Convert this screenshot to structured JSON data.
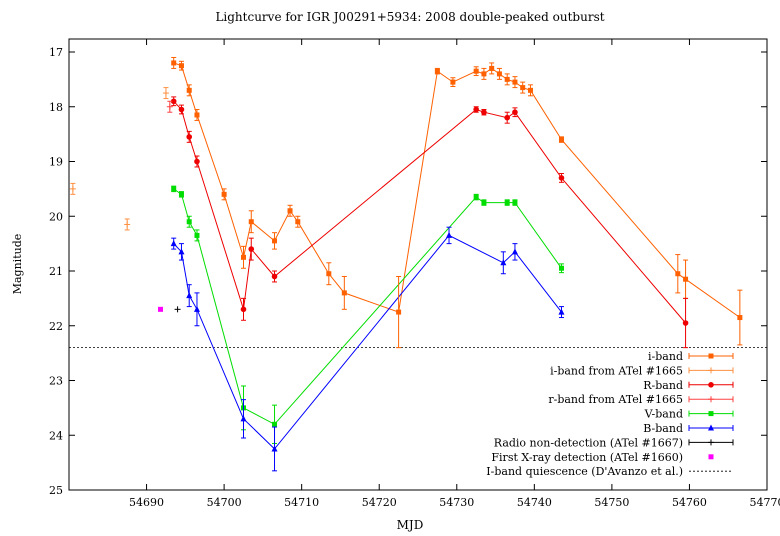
{
  "chart_data": {
    "type": "scatter",
    "title": "Lightcurve for IGR J00291+5934: 2008 double-peaked outburst",
    "xlabel": "MJD",
    "ylabel": "Magnitude",
    "xlim": [
      54680,
      54770
    ],
    "ylim": [
      17,
      25
    ],
    "y_inverted": true,
    "grid": false,
    "legend_position": "bottom-right",
    "x_ticks": [
      54690,
      54700,
      54710,
      54720,
      54730,
      54740,
      54750,
      54760,
      54770
    ],
    "y_ticks": [
      17,
      18,
      19,
      20,
      21,
      22,
      23,
      24,
      25
    ],
    "quiescence_level": 22.4,
    "series": [
      {
        "name": "i-band",
        "color": "#ff6000",
        "marker": "square",
        "connected": true,
        "points": [
          {
            "x": 54693.5,
            "y": 17.2,
            "err": 0.1
          },
          {
            "x": 54694.5,
            "y": 17.25,
            "err": 0.08
          },
          {
            "x": 54695.5,
            "y": 17.7,
            "err": 0.1
          },
          {
            "x": 54696.5,
            "y": 18.15,
            "err": 0.1
          },
          {
            "x": 54700,
            "y": 19.6,
            "err": 0.1
          },
          {
            "x": 54702.5,
            "y": 20.75,
            "err": 0.2
          },
          {
            "x": 54703.5,
            "y": 20.1,
            "err": 0.2
          },
          {
            "x": 54706.5,
            "y": 20.45,
            "err": 0.15
          },
          {
            "x": 54708.5,
            "y": 19.9,
            "err": 0.1
          },
          {
            "x": 54709.5,
            "y": 20.1,
            "err": 0.1
          },
          {
            "x": 54713.5,
            "y": 21.05,
            "err": 0.2
          },
          {
            "x": 54715.5,
            "y": 21.4,
            "err": 0.3
          },
          {
            "x": 54722.5,
            "y": 21.75,
            "err": 0.65
          },
          {
            "x": 54727.5,
            "y": 17.35,
            "err": 0.05
          },
          {
            "x": 54729.5,
            "y": 17.55,
            "err": 0.08
          },
          {
            "x": 54732.5,
            "y": 17.35,
            "err": 0.08
          },
          {
            "x": 54733.5,
            "y": 17.4,
            "err": 0.1
          },
          {
            "x": 54734.5,
            "y": 17.3,
            "err": 0.1
          },
          {
            "x": 54735.5,
            "y": 17.4,
            "err": 0.1
          },
          {
            "x": 54736.5,
            "y": 17.5,
            "err": 0.1
          },
          {
            "x": 54737.5,
            "y": 17.55,
            "err": 0.1
          },
          {
            "x": 54738.5,
            "y": 17.65,
            "err": 0.1
          },
          {
            "x": 54739.5,
            "y": 17.7,
            "err": 0.1
          },
          {
            "x": 54743.5,
            "y": 18.6,
            "err": 0.05
          },
          {
            "x": 54758.5,
            "y": 21.05,
            "err": 0.35
          },
          {
            "x": 54759.5,
            "y": 21.15,
            "err": 0.35
          },
          {
            "x": 54766.5,
            "y": 21.85,
            "err": 0.5
          }
        ]
      },
      {
        "name": "i-band from ATel #1665",
        "color": "#ff9040",
        "marker": "plus",
        "connected": false,
        "points": [
          {
            "x": 54680.5,
            "y": 19.5,
            "err": 0.1
          },
          {
            "x": 54687.5,
            "y": 20.15,
            "err": 0.1
          },
          {
            "x": 54692.5,
            "y": 17.75,
            "err": 0.1
          }
        ]
      },
      {
        "name": "R-band",
        "color": "#ee0000",
        "marker": "circle",
        "connected": true,
        "points": [
          {
            "x": 54693.5,
            "y": 17.9,
            "err": 0.08
          },
          {
            "x": 54694.5,
            "y": 18.05,
            "err": 0.08
          },
          {
            "x": 54695.5,
            "y": 18.55,
            "err": 0.1
          },
          {
            "x": 54696.5,
            "y": 19.0,
            "err": 0.1
          },
          {
            "x": 54702.5,
            "y": 21.7,
            "err": 0.2
          },
          {
            "x": 54703.5,
            "y": 20.6,
            "err": 0.2
          },
          {
            "x": 54706.5,
            "y": 21.1,
            "err": 0.1
          },
          {
            "x": 54732.5,
            "y": 18.05,
            "err": 0.05
          },
          {
            "x": 54733.5,
            "y": 18.1,
            "err": 0.05
          },
          {
            "x": 54736.5,
            "y": 18.2,
            "err": 0.1
          },
          {
            "x": 54737.5,
            "y": 18.1,
            "err": 0.08
          },
          {
            "x": 54743.5,
            "y": 19.3,
            "err": 0.08
          },
          {
            "x": 54759.5,
            "y": 21.95,
            "err": 0.45
          }
        ]
      },
      {
        "name": "r-band from ATel #1665",
        "color": "#ff4040",
        "marker": "plus",
        "connected": false,
        "points": [
          {
            "x": 54693,
            "y": 18.0,
            "err": 0.1
          }
        ]
      },
      {
        "name": "V-band",
        "color": "#00dd00",
        "marker": "square",
        "connected": true,
        "points": [
          {
            "x": 54693.5,
            "y": 19.5,
            "err": 0.05
          },
          {
            "x": 54694.5,
            "y": 19.6,
            "err": 0.05
          },
          {
            "x": 54695.5,
            "y": 20.1,
            "err": 0.1
          },
          {
            "x": 54696.5,
            "y": 20.35,
            "err": 0.1
          },
          {
            "x": 54702.5,
            "y": 23.5,
            "err": 0.4
          },
          {
            "x": 54706.5,
            "y": 23.8,
            "err": 0.35
          },
          {
            "x": 54732.5,
            "y": 19.65,
            "err": 0.05
          },
          {
            "x": 54733.5,
            "y": 19.75,
            "err": 0.05
          },
          {
            "x": 54736.5,
            "y": 19.75,
            "err": 0.05
          },
          {
            "x": 54737.5,
            "y": 19.75,
            "err": 0.05
          },
          {
            "x": 54743.5,
            "y": 20.95,
            "err": 0.08
          }
        ]
      },
      {
        "name": "B-band",
        "color": "#0000ff",
        "marker": "triangle",
        "connected": true,
        "points": [
          {
            "x": 54693.5,
            "y": 20.5,
            "err": 0.1
          },
          {
            "x": 54694.5,
            "y": 20.65,
            "err": 0.15
          },
          {
            "x": 54695.5,
            "y": 21.45,
            "err": 0.2
          },
          {
            "x": 54696.5,
            "y": 21.7,
            "err": 0.3
          },
          {
            "x": 54702.5,
            "y": 23.7,
            "err": 0.35
          },
          {
            "x": 54706.5,
            "y": 24.25,
            "err": 0.4
          },
          {
            "x": 54729,
            "y": 20.35,
            "err": 0.15
          },
          {
            "x": 54736,
            "y": 20.85,
            "err": 0.2
          },
          {
            "x": 54737.5,
            "y": 20.65,
            "err": 0.15
          },
          {
            "x": 54743.5,
            "y": 21.75,
            "err": 0.1
          }
        ]
      },
      {
        "name": "Radio non-detection (ATel #1667)",
        "color": "#000000",
        "marker": "plus",
        "connected": false,
        "points": [
          {
            "x": 54694,
            "y": 21.7,
            "err": 0
          }
        ]
      },
      {
        "name": "First X-ray detection (ATel #1660)",
        "color": "#ff00ff",
        "marker": "square",
        "connected": false,
        "points": [
          {
            "x": 54691.8,
            "y": 21.7,
            "err": 0
          }
        ]
      },
      {
        "name": "I-band quiescence (D'Avanzo et al.)",
        "color": "#000000",
        "marker": "dashed-line",
        "connected": false,
        "points": []
      }
    ]
  }
}
